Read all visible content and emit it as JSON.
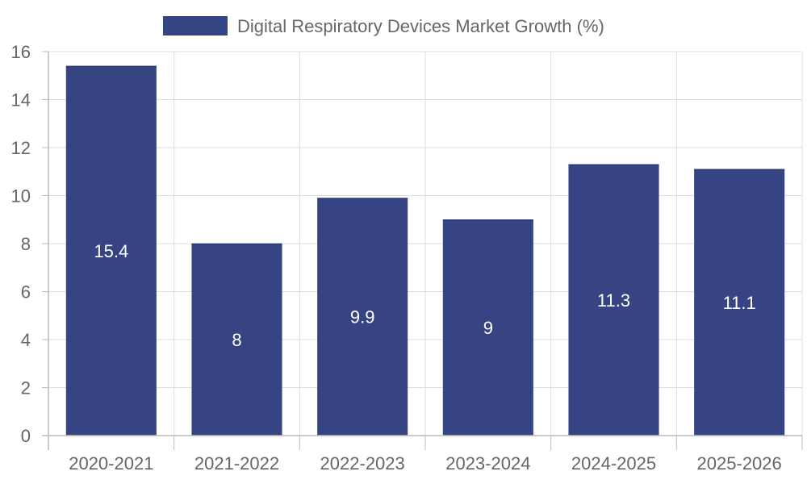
{
  "chart_data": {
    "type": "bar",
    "title": "",
    "xlabel": "",
    "ylabel": "",
    "categories": [
      "2020-2021",
      "2021-2022",
      "2022-2023",
      "2023-2024",
      "2024-2025",
      "2025-2026"
    ],
    "series": [
      {
        "name": "Digital Respiratory Devices Market Growth (%)",
        "values": [
          15.4,
          8,
          9.9,
          9,
          11.3,
          11.1
        ]
      }
    ],
    "ylim": [
      0,
      16
    ],
    "yticks": [
      0,
      2,
      4,
      6,
      8,
      10,
      12,
      14,
      16
    ],
    "grid": true,
    "legend_position": "top-center",
    "data_labels": true
  },
  "colors": {
    "bar": "#374483",
    "grid": "#dddddd",
    "axis": "#bbbbbb",
    "tick_text": "#666666",
    "label_text": "#ffffff"
  }
}
